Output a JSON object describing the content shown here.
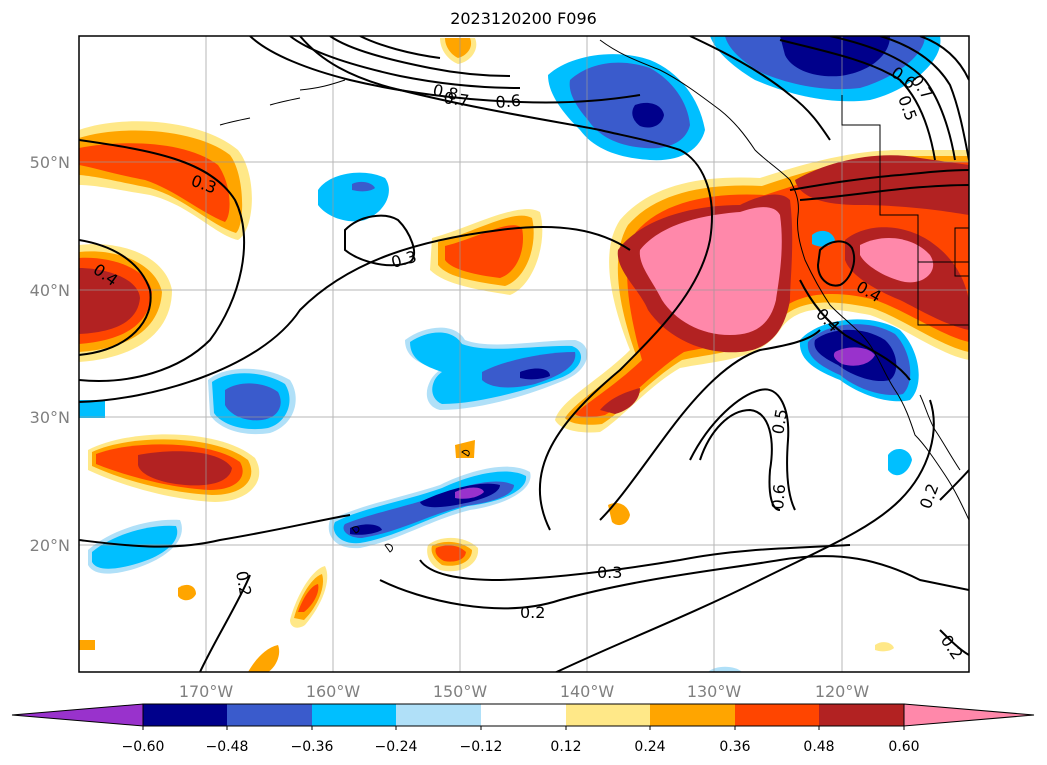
{
  "title": "2023120200 F096",
  "map": {
    "lat_ticks": [
      "50°N",
      "40°N",
      "30°N",
      "20°N"
    ],
    "lon_ticks": [
      "170°W",
      "160°W",
      "150°W",
      "140°W",
      "130°W",
      "120°W"
    ],
    "contour_labels": [
      "0.3",
      "0.3",
      "0.3",
      "0.4",
      "0.4",
      "0.4",
      "0.5",
      "0.6",
      "0.6",
      "0.7",
      "0.8",
      "0.6",
      "0.7",
      "0.5",
      "0.2",
      "0.2",
      "0.2",
      "0.2"
    ]
  },
  "colorbar": {
    "labels": [
      "−0.60",
      "−0.48",
      "−0.36",
      "−0.24",
      "−0.12",
      "0.12",
      "0.24",
      "0.36",
      "0.48",
      "0.60"
    ],
    "colors": [
      "#9932cc",
      "#00008b",
      "#3a5bcc",
      "#00bfff",
      "#b0e0f8",
      "#ffffff",
      "#ffe888",
      "#ffa500",
      "#ff4500",
      "#b22222",
      "#ff88aa"
    ]
  }
}
